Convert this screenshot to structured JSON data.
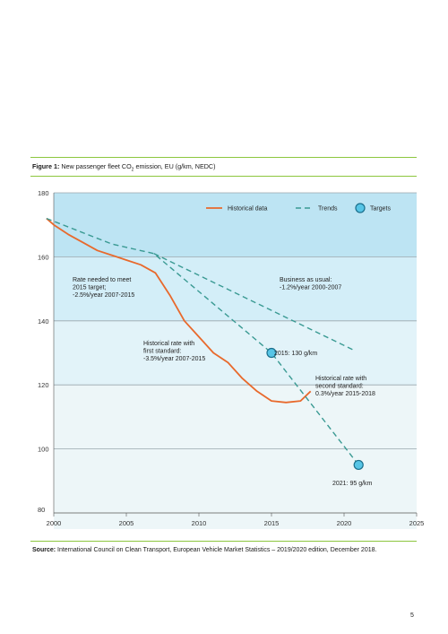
{
  "figure": {
    "label": "Figure 1:",
    "caption_pre": " New passenger fleet CO",
    "caption_sub": "2",
    "caption_post": " emission, EU (g/km, NEDC)"
  },
  "source": {
    "label": "Source:",
    "text": " International Council on Clean Transport, European Vehicle Market Statistics – 2019/2020 edition, December 2018."
  },
  "page_number": "5",
  "colors": {
    "historical": "#e8692c",
    "trend": "#3a9a93",
    "target_fill": "#57c5e6",
    "target_stroke": "#1b6f8c",
    "band_top": "#bde4f3",
    "band_2": "#d3eef8",
    "band_3": "#e2f3f9",
    "band_bottom": "#edf6f8",
    "rule": "#8cc63e"
  },
  "chart_data": {
    "type": "line",
    "xlim": [
      2000,
      2025
    ],
    "ylim": [
      80,
      180
    ],
    "x_ticks": [
      2000,
      2005,
      2010,
      2015,
      2020,
      2025
    ],
    "y_ticks": [
      80,
      100,
      120,
      140,
      160,
      180
    ],
    "grid": true,
    "legend_position": "top-right",
    "legend": [
      {
        "label": "Historical data",
        "style": "solid-line"
      },
      {
        "label": "Trends",
        "style": "dashed-line"
      },
      {
        "label": "Targets",
        "style": "circle"
      }
    ],
    "series": [
      {
        "name": "Historical data",
        "x": [
          1999.5,
          2000,
          2001,
          2002,
          2003,
          2004,
          2005,
          2006,
          2007,
          2008,
          2009,
          2010,
          2011,
          2012,
          2013,
          2014,
          2015,
          2016,
          2017,
          2017.7
        ],
        "y": [
          172,
          170,
          167,
          164.5,
          162,
          160.5,
          159,
          157.5,
          155,
          148,
          140,
          135,
          130,
          127,
          122,
          118,
          115,
          114.5,
          115,
          118
        ]
      },
      {
        "name": "Trends",
        "x": [
          1999.5,
          2004,
          2006.9,
          2015,
          2021
        ],
        "y": [
          172,
          164,
          161,
          130,
          95
        ]
      },
      {
        "name": "Trends",
        "x": [
          2006.9,
          2020.6
        ],
        "y": [
          161,
          131
        ]
      },
      {
        "name": "Targets",
        "x": [
          2015,
          2021
        ],
        "y": [
          130,
          95
        ]
      }
    ],
    "annotations": [
      {
        "lines": [
          "Rate needed to meet",
          "2015 target;",
          "-2.5%/year 2007-2015"
        ]
      },
      {
        "lines": [
          "Business as usual:",
          "-1.2%/year 2000-2007"
        ]
      },
      {
        "lines": [
          "Historical rate with",
          "first standard:",
          "-3.5%/year 2007-2015"
        ]
      },
      {
        "lines": [
          "Historical rate with",
          "second standard:",
          "0.3%/year 2015-2018"
        ]
      },
      {
        "lines": [
          "2015: 130 g/km"
        ]
      },
      {
        "lines": [
          "2021: 95 g/km"
        ]
      }
    ]
  }
}
